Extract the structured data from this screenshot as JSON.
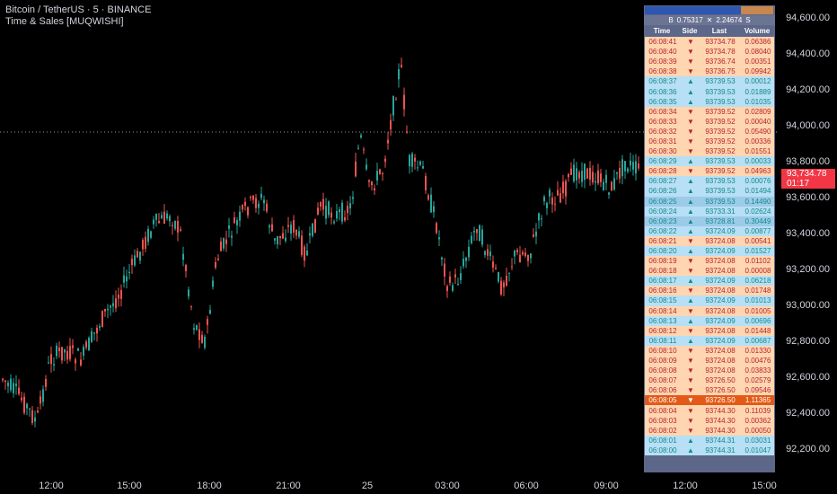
{
  "legend": {
    "symbol": "Bitcoin / TetherUS · 5 · BINANCE",
    "indicator": "Time & Sales [MUQWISHI]"
  },
  "price_axis": {
    "labels": [
      "94,600.00",
      "94,400.00",
      "94,200.00",
      "94,000.00",
      "93,800.00",
      "93,600.00",
      "93,400.00",
      "93,200.00",
      "93,000.00",
      "92,800.00",
      "92,600.00",
      "92,400.00",
      "92,200.00"
    ],
    "last_price": "93,734.78",
    "countdown": "01:17"
  },
  "time_axis": {
    "labels": [
      "12:00",
      "15:00",
      "18:00",
      "21:00",
      "25",
      "03:00",
      "06:00",
      "09:00",
      "12:00",
      "15:00"
    ]
  },
  "colors": {
    "up": "#26a69a",
    "down": "#ef5350",
    "wick_down": "#f23645",
    "last_tag": "#f23645"
  },
  "time_sales": {
    "stats": {
      "buy_label": "B",
      "buy_ratio": "0.75317",
      "separator": "✕",
      "sell_value": "2.24674",
      "sell_label": "S"
    },
    "buy_fraction": 0.75,
    "columns": [
      "Time",
      "Side",
      "Last",
      "Volume"
    ],
    "rows": [
      {
        "time": "06:08:41",
        "side": "▼",
        "last": "93734.78",
        "volume": "0.06386",
        "type": "sell"
      },
      {
        "time": "06:08:40",
        "side": "▼",
        "last": "93734.78",
        "volume": "0.08040",
        "type": "sell"
      },
      {
        "time": "06:08:39",
        "side": "▼",
        "last": "93736.74",
        "volume": "0.00351",
        "type": "sell"
      },
      {
        "time": "06:08:38",
        "side": "▼",
        "last": "93736.75",
        "volume": "0.09942",
        "type": "sell"
      },
      {
        "time": "06:08:37",
        "side": "▲",
        "last": "93739.53",
        "volume": "0.00012",
        "type": "buy"
      },
      {
        "time": "06:08:36",
        "side": "▲",
        "last": "93739.53",
        "volume": "0.01889",
        "type": "buy"
      },
      {
        "time": "06:08:35",
        "side": "▲",
        "last": "93739.53",
        "volume": "0.01035",
        "type": "buy"
      },
      {
        "time": "06:08:34",
        "side": "▼",
        "last": "93739.52",
        "volume": "0.02809",
        "type": "sell"
      },
      {
        "time": "06:08:33",
        "side": "▼",
        "last": "93739.52",
        "volume": "0.00040",
        "type": "sell"
      },
      {
        "time": "06:08:32",
        "side": "▼",
        "last": "93739.52",
        "volume": "0.05490",
        "type": "sell"
      },
      {
        "time": "06:08:31",
        "side": "▼",
        "last": "93739.52",
        "volume": "0.00336",
        "type": "sell"
      },
      {
        "time": "06:08:30",
        "side": "▼",
        "last": "93739.52",
        "volume": "0.01551",
        "type": "sell"
      },
      {
        "time": "06:08:29",
        "side": "▲",
        "last": "93739.53",
        "volume": "0.00033",
        "type": "buy"
      },
      {
        "time": "06:08:28",
        "side": "▼",
        "last": "93739.52",
        "volume": "0.04963",
        "type": "sell"
      },
      {
        "time": "06:08:27",
        "side": "▲",
        "last": "93739.53",
        "volume": "0.00076",
        "type": "buy"
      },
      {
        "time": "06:08:26",
        "side": "▲",
        "last": "93739.53",
        "volume": "0.01494",
        "type": "buy"
      },
      {
        "time": "06:08:25",
        "side": "▲",
        "last": "93739.53",
        "volume": "0.14490",
        "type": "buy-strong"
      },
      {
        "time": "06:08:24",
        "side": "▲",
        "last": "93733.31",
        "volume": "0.02624",
        "type": "buy"
      },
      {
        "time": "06:08:23",
        "side": "▲",
        "last": "93728.81",
        "volume": "0.30449",
        "type": "buy-strong"
      },
      {
        "time": "06:08:22",
        "side": "▲",
        "last": "93724.09",
        "volume": "0.00877",
        "type": "buy"
      },
      {
        "time": "06:08:21",
        "side": "▼",
        "last": "93724.08",
        "volume": "0.00541",
        "type": "sell"
      },
      {
        "time": "06:08:20",
        "side": "▲",
        "last": "93724.09",
        "volume": "0.01527",
        "type": "buy"
      },
      {
        "time": "06:08:19",
        "side": "▼",
        "last": "93724.08",
        "volume": "0.01102",
        "type": "sell"
      },
      {
        "time": "06:08:18",
        "side": "▼",
        "last": "93724.08",
        "volume": "0.00008",
        "type": "sell"
      },
      {
        "time": "06:08:17",
        "side": "▲",
        "last": "93724.09",
        "volume": "0.06218",
        "type": "buy"
      },
      {
        "time": "06:08:16",
        "side": "▼",
        "last": "93724.08",
        "volume": "0.01748",
        "type": "sell"
      },
      {
        "time": "06:08:15",
        "side": "▲",
        "last": "93724.09",
        "volume": "0.01013",
        "type": "buy"
      },
      {
        "time": "06:08:14",
        "side": "▼",
        "last": "93724.08",
        "volume": "0.01005",
        "type": "sell"
      },
      {
        "time": "06:08:13",
        "side": "▲",
        "last": "93724.09",
        "volume": "0.00696",
        "type": "buy"
      },
      {
        "time": "06:08:12",
        "side": "▼",
        "last": "93724.08",
        "volume": "0.01448",
        "type": "sell"
      },
      {
        "time": "06:08:11",
        "side": "▲",
        "last": "93724.09",
        "volume": "0.00687",
        "type": "buy"
      },
      {
        "time": "06:08:10",
        "side": "▼",
        "last": "93724.08",
        "volume": "0.01330",
        "type": "sell"
      },
      {
        "time": "06:08:09",
        "side": "▼",
        "last": "93724.08",
        "volume": "0.00476",
        "type": "sell"
      },
      {
        "time": "06:08:08",
        "side": "▼",
        "last": "93724.08",
        "volume": "0.03833",
        "type": "sell"
      },
      {
        "time": "06:08:07",
        "side": "▼",
        "last": "93726.50",
        "volume": "0.02579",
        "type": "sell"
      },
      {
        "time": "06:08:06",
        "side": "▼",
        "last": "93726.50",
        "volume": "0.09546",
        "type": "sell"
      },
      {
        "time": "06:08:05",
        "side": "▼",
        "last": "93726.50",
        "volume": "1.11365",
        "type": "sell-hi"
      },
      {
        "time": "06:08:04",
        "side": "▼",
        "last": "93744.30",
        "volume": "0.11039",
        "type": "sell"
      },
      {
        "time": "06:08:03",
        "side": "▼",
        "last": "93744.30",
        "volume": "0.00362",
        "type": "sell"
      },
      {
        "time": "06:08:02",
        "side": "▼",
        "last": "93744.30",
        "volume": "0.00050",
        "type": "sell"
      },
      {
        "time": "06:08:01",
        "side": "▲",
        "last": "93744.31",
        "volume": "0.03031",
        "type": "buy"
      },
      {
        "time": "06:08:00",
        "side": "▲",
        "last": "93744.31",
        "volume": "0.01047",
        "type": "buy"
      }
    ]
  }
}
